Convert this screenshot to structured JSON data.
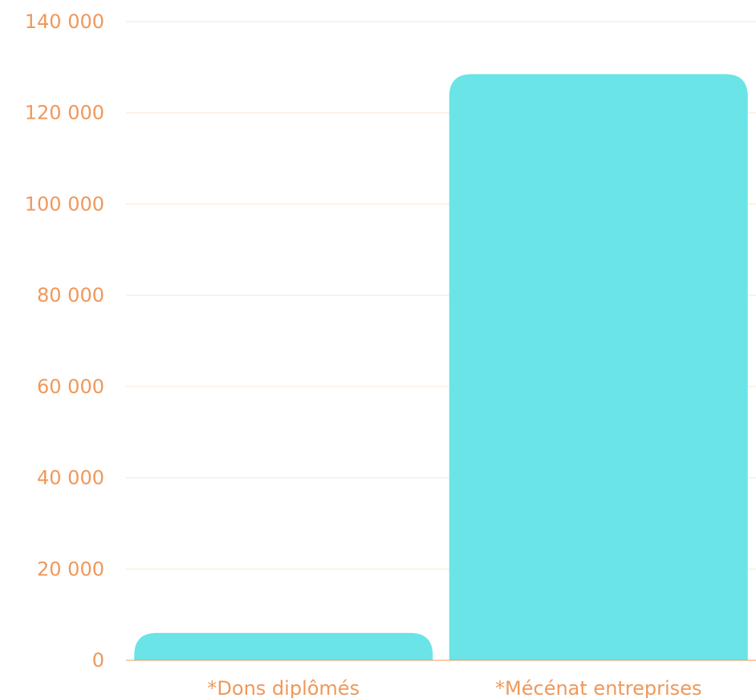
{
  "chart_data": {
    "type": "bar",
    "title": "",
    "xlabel": "",
    "ylabel": "",
    "categories": [
      "*Dons diplômés",
      "*Mécénat entreprises"
    ],
    "values": [
      6000,
      128500
    ],
    "ylim": [
      0,
      140000
    ],
    "y_ticks": [
      0,
      20000,
      40000,
      60000,
      80000,
      100000,
      120000,
      140000
    ],
    "y_tick_labels": [
      "0",
      "20 000",
      "40 000",
      "60 000",
      "80 000",
      "100 000",
      "120 000",
      "140 000"
    ],
    "grid": true,
    "legend": "none",
    "colors": {
      "bar": "#6ae4e7",
      "text": "#f0985a",
      "grid": "#fbe7d6"
    }
  }
}
